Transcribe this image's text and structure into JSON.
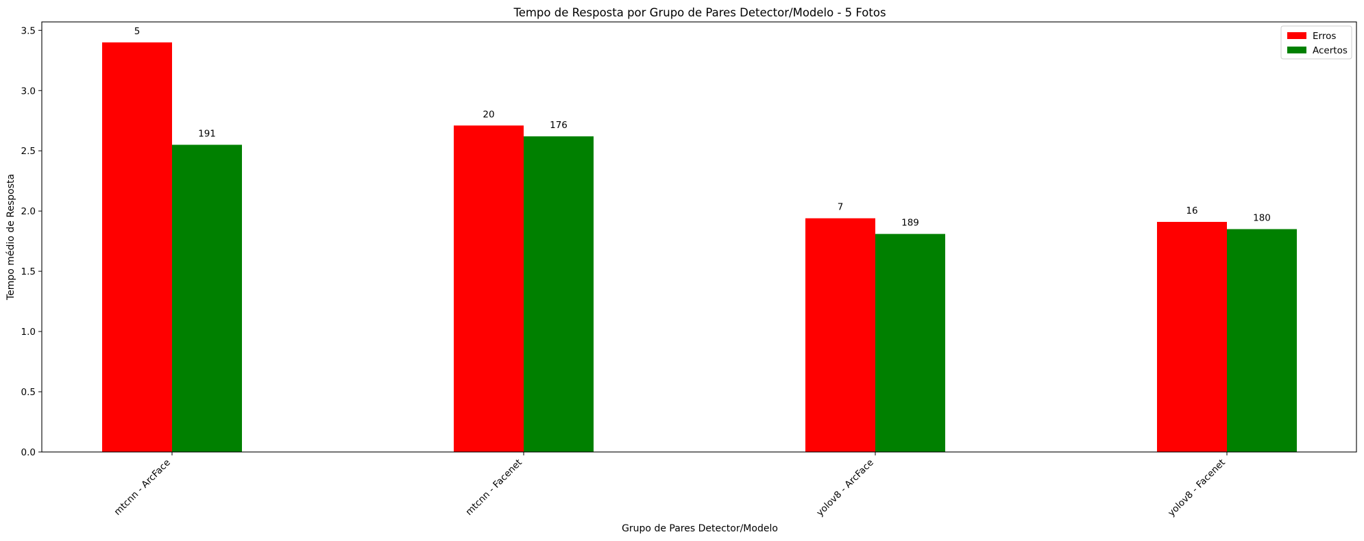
{
  "chart_data": {
    "type": "bar",
    "title": "Tempo de Resposta por Grupo de Pares Detector/Modelo - 5 Fotos",
    "xlabel": "Grupo de Pares Detector/Modelo",
    "ylabel": "Tempo médio de Resposta",
    "categories": [
      "mtcnn - ArcFace",
      "mtcnn - Facenet",
      "yolov8 - ArcFace",
      "yolov8 - Facenet"
    ],
    "series": [
      {
        "name": "Erros",
        "color": "#ff0000",
        "values": [
          3.4,
          2.71,
          1.94,
          1.91
        ],
        "labels": [
          "5",
          "20",
          "7",
          "16"
        ]
      },
      {
        "name": "Acertos",
        "color": "#008000",
        "values": [
          2.55,
          2.62,
          1.81,
          1.85
        ],
        "labels": [
          "191",
          "176",
          "189",
          "180"
        ]
      }
    ],
    "yticks": [
      "0.0",
      "0.5",
      "1.0",
      "1.5",
      "2.0",
      "2.5",
      "3.0",
      "3.5"
    ],
    "ylim": [
      0,
      3.57
    ],
    "grid": false,
    "legend": "top-right"
  }
}
